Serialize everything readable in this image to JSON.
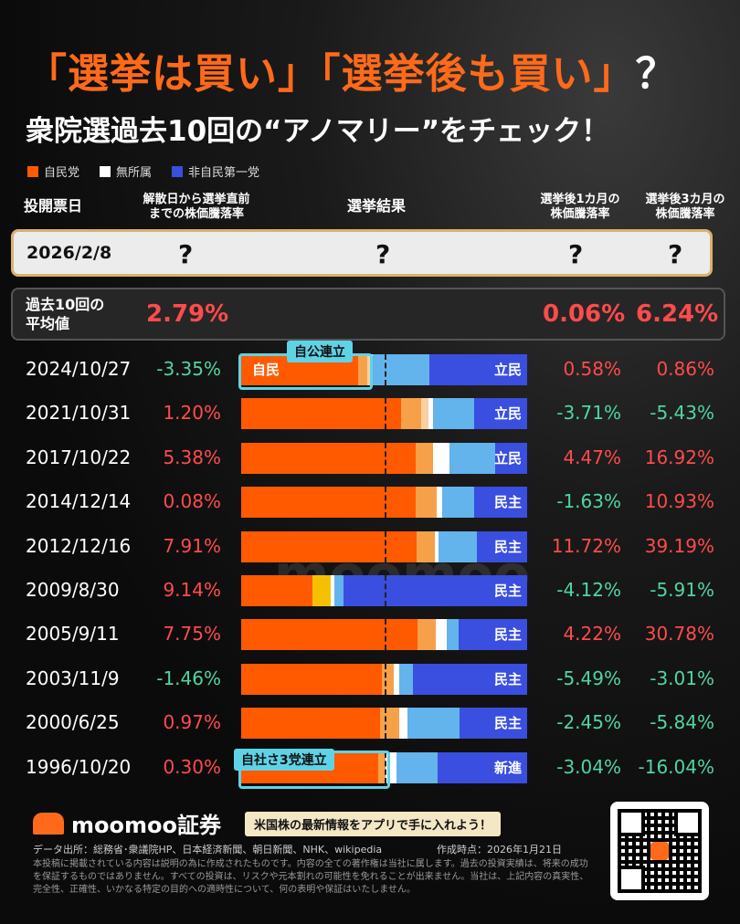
{
  "title": {
    "main": "「選挙は買い」「選挙後も買い」",
    "q": "？"
  },
  "subtitle": "衆院選過去10回の“アノマリー”をチェック！",
  "colors": {
    "ldp": "#ff5a00",
    "indep": "#ffffff",
    "opp": "#3a4ee0",
    "green": "#4fd6a0",
    "red": "#ff4b4b",
    "coalition": "#5fd3e6"
  },
  "legend": [
    {
      "label": "自民党",
      "color": "#ff5a00"
    },
    {
      "label": "無所属",
      "color": "#ffffff"
    },
    {
      "label": "非自民第一党",
      "color": "#3a4ee0"
    }
  ],
  "headers": {
    "date": "投開票日",
    "pre": [
      "解散日から選挙直前",
      "までの株価騰落率"
    ],
    "result": "選挙結果",
    "m1": [
      "選挙後1カ月の",
      "株価騰落率"
    ],
    "m3": [
      "選挙後3カ月の",
      "株価騰落率"
    ]
  },
  "prediction": {
    "date": "2026/2/8",
    "mark": "?"
  },
  "average": {
    "label": [
      "過去10回の",
      "平均値"
    ],
    "pre": "2.79%",
    "m1": "0.06%",
    "m3": "6.24%"
  },
  "chart_data": {
    "type": "table",
    "rows": [
      {
        "date": "2024/10/27",
        "pre": "-3.35%",
        "m1": "0.58%",
        "m3": "0.86%",
        "opp": "立民",
        "ldp_label": "自民"
      },
      {
        "date": "2021/10/31",
        "pre": "1.20%",
        "m1": "-3.71%",
        "m3": "-5.43%",
        "opp": "立民"
      },
      {
        "date": "2017/10/22",
        "pre": "5.38%",
        "m1": "4.47%",
        "m3": "16.92%",
        "opp": "立民"
      },
      {
        "date": "2014/12/14",
        "pre": "0.08%",
        "m1": "-1.63%",
        "m3": "10.93%",
        "opp": "民主"
      },
      {
        "date": "2012/12/16",
        "pre": "7.91%",
        "m1": "11.72%",
        "m3": "39.19%",
        "opp": "民主"
      },
      {
        "date": "2009/8/30",
        "pre": "9.14%",
        "m1": "-4.12%",
        "m3": "-5.91%",
        "opp": "民主"
      },
      {
        "date": "2005/9/11",
        "pre": "7.75%",
        "m1": "4.22%",
        "m3": "30.78%",
        "opp": "民主"
      },
      {
        "date": "2003/11/9",
        "pre": "-1.46%",
        "m1": "-5.49%",
        "m3": "-3.01%",
        "opp": "民主"
      },
      {
        "date": "2000/6/25",
        "pre": "0.97%",
        "m1": "-2.45%",
        "m3": "-5.84%",
        "opp": "民主"
      },
      {
        "date": "1996/10/20",
        "pre": "0.30%",
        "m1": "-3.04%",
        "m3": "-16.04%",
        "opp": "新進"
      }
    ],
    "seat_shares": [
      {
        "ldp": 0.409,
        "other": [
          [
            "#f7a04a",
            0.032
          ],
          [
            "#fbd0a0",
            0.008
          ],
          [
            "#ffffff",
            0.01
          ],
          [
            "#63b3ec",
            0.2
          ]
        ]
      },
      {
        "ldp": 0.56,
        "other": [
          [
            "#f7a04a",
            0.069
          ],
          [
            "#fbd0a0",
            0.025
          ],
          [
            "#ffffff",
            0.018
          ],
          [
            "#63b3ec",
            0.142
          ]
        ]
      },
      {
        "ldp": 0.609,
        "other": [
          [
            "#f7a04a",
            0.062
          ],
          [
            "#ffffff",
            0.056
          ],
          [
            "#63b3ec",
            0.161
          ]
        ]
      },
      {
        "ldp": 0.61,
        "other": [
          [
            "#f7a04a",
            0.075
          ],
          [
            "#ffffff",
            0.018
          ],
          [
            "#63b3ec",
            0.113
          ]
        ]
      },
      {
        "ldp": 0.613,
        "other": [
          [
            "#f7a04a",
            0.065
          ],
          [
            "#ffffff",
            0.012
          ],
          [
            "#63b3ec",
            0.135
          ]
        ]
      },
      {
        "ldp": 0.248,
        "other": [
          [
            "#f5c000",
            0.065
          ],
          [
            "#ffffff",
            0.014
          ],
          [
            "#63b3ec",
            0.03
          ]
        ]
      },
      {
        "ldp": 0.616,
        "other": [
          [
            "#f7a04a",
            0.065
          ],
          [
            "#ffffff",
            0.038
          ],
          [
            "#63b3ec",
            0.04
          ]
        ]
      },
      {
        "ldp": 0.492,
        "other": [
          [
            "#f7a04a",
            0.04
          ],
          [
            "#ffffff",
            0.022
          ],
          [
            "#63b3ec",
            0.046
          ]
        ]
      },
      {
        "ldp": 0.487,
        "other": [
          [
            "#f7a04a",
            0.065
          ],
          [
            "#ffffff",
            0.028
          ],
          [
            "#63b3ec",
            0.184
          ]
        ]
      },
      {
        "ldp": 0.478,
        "other": [
          [
            "#f7a04a",
            0.028
          ],
          [
            "#ffffff",
            0.038
          ],
          [
            "#63b3ec",
            0.143
          ]
        ]
      }
    ],
    "majority_line": 0.5
  },
  "coalitions": [
    {
      "label": "自公連立"
    },
    {
      "label": "自社さ3党連立"
    }
  ],
  "watermark": "moomoo",
  "footer": {
    "logo": "moomoo証券",
    "banner": "米国株の最新情報をアプリで手に入れよう！",
    "source": "データ出所：総務省･衆議院HP、日本経済新聞、朝日新聞、NHK、wikipedia",
    "made": "作成時点：2026年1月21日",
    "disclaimer": "本投稿に掲載されている内容は説明の為に作成されたものです。内容の全ての著作権は当社に属します。過去の投資実績は、将来の成功を保証するものではありません。すべての投資は、リスクや元本割れの可能性を免れることが出来ません。当社は、上記内容の真実性、完全性、正確性、いかなる特定の目的への適時性について、何の表明や保証はいたしません。"
  }
}
